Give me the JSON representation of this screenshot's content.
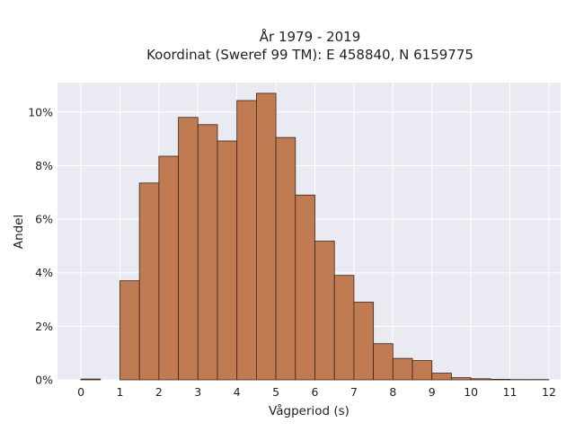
{
  "chart_data": {
    "type": "bar",
    "title": [
      "År 1979 - 2019",
      "Koordinat (Sweref 99 TM): E 458840, N 6159775"
    ],
    "xlabel": "Vågperiod (s)",
    "ylabel": "Andel",
    "xlim": [
      -0.6,
      12.3
    ],
    "ylim": [
      0,
      0.111
    ],
    "xticks": [
      0,
      1,
      2,
      3,
      4,
      5,
      6,
      7,
      8,
      9,
      10,
      11,
      12
    ],
    "xtick_labels": [
      "0",
      "1",
      "2",
      "3",
      "4",
      "5",
      "6",
      "7",
      "8",
      "9",
      "10",
      "11",
      "12"
    ],
    "yticks": [
      0,
      0.02,
      0.04,
      0.06,
      0.08,
      0.1
    ],
    "ytick_labels": [
      "0%",
      "2%",
      "4%",
      "6%",
      "8%",
      "10%"
    ],
    "grid": true,
    "bin_width": 0.5,
    "bins": [
      0,
      0.5,
      1,
      1.5,
      2,
      2.5,
      3,
      3.5,
      4,
      4.5,
      5,
      5.5,
      6,
      6.5,
      7,
      7.5,
      8,
      8.5,
      9,
      9.5,
      10,
      10.5,
      11,
      11.5
    ],
    "values": [
      0.0003,
      0.0,
      0.037,
      0.0735,
      0.0835,
      0.098,
      0.0953,
      0.0892,
      0.1043,
      0.107,
      0.0905,
      0.069,
      0.0518,
      0.039,
      0.029,
      0.0135,
      0.008,
      0.0072,
      0.0025,
      0.0008,
      0.0004,
      0.0002,
      0.0001,
      0.0001
    ],
    "colors": {
      "bar": "#c07b53",
      "edge": "#3a2418",
      "plot_bg": "#eaeaf2",
      "grid": "#ffffff"
    }
  }
}
